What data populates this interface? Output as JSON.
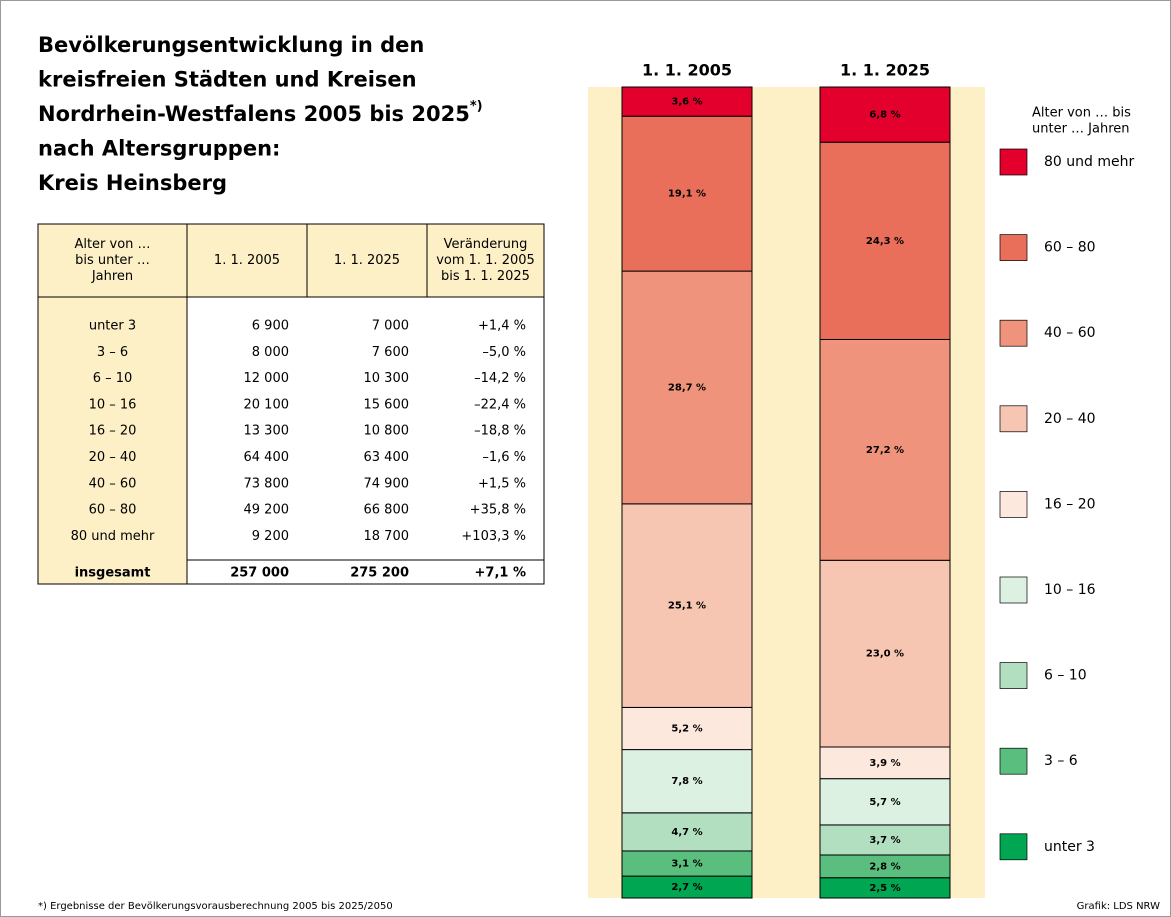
{
  "title": {
    "lines": [
      "Bevölkerungsentwicklung in den",
      "kreisfreien Städten und Kreisen",
      "Nordrhein-Westfalens 2005 bis 2025",
      "nach Altersgruppen:",
      "Kreis Heinsberg"
    ],
    "note_mark": "*)"
  },
  "table": {
    "header": [
      [
        "Alter von …",
        "bis unter …",
        "Jahren"
      ],
      [
        "1. 1. 2005"
      ],
      [
        "1. 1. 2025"
      ],
      [
        "Veränderung",
        "vom 1. 1. 2005",
        "bis 1. 1. 2025"
      ]
    ],
    "rows": [
      [
        "unter 3",
        "6 900",
        "7 000",
        "+1,4 %"
      ],
      [
        "3 – 6",
        "8 000",
        "7 600",
        "–5,0 %"
      ],
      [
        "6 – 10",
        "12 000",
        "10 300",
        "–14,2 %"
      ],
      [
        "10 – 16",
        "20 100",
        "15 600",
        "–22,4 %"
      ],
      [
        "16 – 20",
        "13 300",
        "10 800",
        "–18,8 %"
      ],
      [
        "20 – 40",
        "64 400",
        "63 400",
        "–1,6 %"
      ],
      [
        "40 – 60",
        "73 800",
        "74 900",
        "+1,5 %"
      ],
      [
        "60 – 80",
        "49 200",
        "66 800",
        "+35,8 %"
      ],
      [
        "80 und mehr",
        "9 200",
        "18 700",
        "+103,3 %"
      ]
    ],
    "total": [
      "insgesamt",
      "257 000",
      "275 200",
      "+7,1 %"
    ]
  },
  "footnote": "*) Ergebnisse der Bevölkerungsvorausberechnung 2005 bis 2025/2050",
  "credit": "Grafik: LDS NRW",
  "chart_data": {
    "type": "bar",
    "stacked": true,
    "categories": [
      "1. 1. 2005",
      "1. 1. 2025"
    ],
    "legend_title": [
      "Alter von … bis",
      "unter … Jahren"
    ],
    "series": [
      {
        "name": "unter 3",
        "color": "#00a651",
        "values": [
          2.7,
          2.5
        ],
        "value_labels": [
          "2,7 %",
          "2,5 %"
        ]
      },
      {
        "name": "3 – 6",
        "color": "#5abf7e",
        "values": [
          3.1,
          2.8
        ],
        "value_labels": [
          "3,1 %",
          "2,8 %"
        ]
      },
      {
        "name": "6 – 10",
        "color": "#b3dfc1",
        "values": [
          4.7,
          3.7
        ],
        "value_labels": [
          "4,7 %",
          "3,7 %"
        ]
      },
      {
        "name": "10 – 16",
        "color": "#dcf1e2",
        "values": [
          7.8,
          5.7
        ],
        "value_labels": [
          "7,8 %",
          "5,7 %"
        ]
      },
      {
        "name": "16 – 20",
        "color": "#fde8dd",
        "values": [
          5.2,
          3.9
        ],
        "value_labels": [
          "5,2 %",
          "3,9 %"
        ]
      },
      {
        "name": "20 – 40",
        "color": "#f6c6b3",
        "values": [
          25.1,
          23.0
        ],
        "value_labels": [
          "25,1 %",
          "23,0 %"
        ]
      },
      {
        "name": "40 – 60",
        "color": "#ef937c",
        "values": [
          28.7,
          27.2
        ],
        "value_labels": [
          "28,7 %",
          "27,2 %"
        ]
      },
      {
        "name": "60 – 80",
        "color": "#e96f5a",
        "values": [
          19.1,
          24.3
        ],
        "value_labels": [
          "19,1 %",
          "24,3 %"
        ]
      },
      {
        "name": "80 und mehr",
        "color": "#e3002c",
        "values": [
          3.6,
          6.8
        ],
        "value_labels": [
          "3,6 %",
          "6,8 %"
        ]
      }
    ]
  }
}
